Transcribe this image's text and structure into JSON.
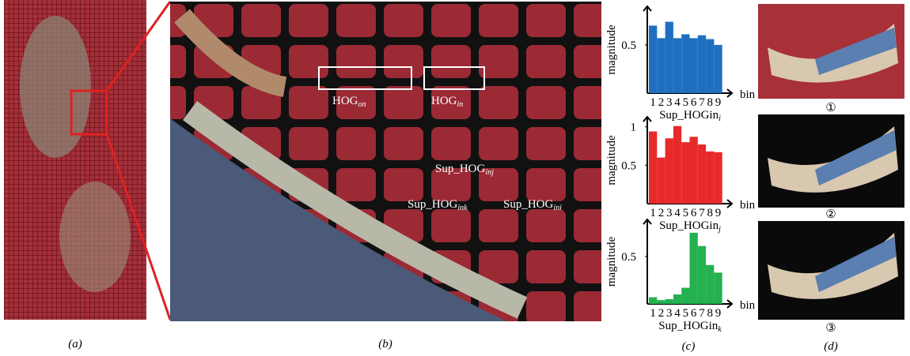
{
  "chart_data": [
    {
      "type": "bar",
      "color": "#1f6fc0",
      "ylabel": "magnitude",
      "xaxis_end": "bin",
      "xlabel": "Sup_HOGin",
      "xlabel_sub": "i",
      "categories": [
        "1",
        "2",
        "3",
        "4",
        "5",
        "6",
        "7",
        "8",
        "9"
      ],
      "values": [
        0.7,
        0.57,
        0.74,
        0.57,
        0.61,
        0.57,
        0.6,
        0.56,
        0.5
      ],
      "ylim": [
        0,
        0.9
      ],
      "yticks": [
        0.5
      ]
    },
    {
      "type": "bar",
      "color": "#e8292a",
      "ylabel": "magnitude",
      "xaxis_end": "bin",
      "xlabel": "Sup_HOGin",
      "xlabel_sub": "j",
      "categories": [
        "1",
        "2",
        "3",
        "4",
        "5",
        "6",
        "7",
        "8",
        "9"
      ],
      "values": [
        0.94,
        0.6,
        0.85,
        1.01,
        0.8,
        0.87,
        0.77,
        0.68,
        0.67
      ],
      "ylim": [
        0,
        1.13
      ],
      "yticks": [
        0.5,
        1
      ]
    },
    {
      "type": "bar",
      "color": "#25b150",
      "ylabel": "magnitude",
      "xaxis_end": "bin",
      "xlabel": "Sup_HOGin",
      "xlabel_sub": "k",
      "categories": [
        "1",
        "2",
        "3",
        "4",
        "5",
        "6",
        "7",
        "8",
        "9"
      ],
      "values": [
        0.07,
        0.04,
        0.05,
        0.1,
        0.17,
        0.75,
        0.61,
        0.41,
        0.33
      ],
      "ylim": [
        0,
        0.89
      ],
      "yticks": [
        0.5
      ]
    }
  ],
  "zoom_labels": [
    {
      "text": "HOG",
      "sub": "on"
    },
    {
      "text": "HOG",
      "sub": "in"
    },
    {
      "text": "Sup_HOG",
      "sub": "inj"
    },
    {
      "text": "Sup_HOG",
      "sub": "ink"
    },
    {
      "text": "Sup_HOG",
      "sub": "ini"
    }
  ],
  "result_marks": [
    "①",
    "②",
    "③"
  ],
  "captions": [
    "(a)",
    "(b)",
    "(c)",
    "(d)"
  ]
}
